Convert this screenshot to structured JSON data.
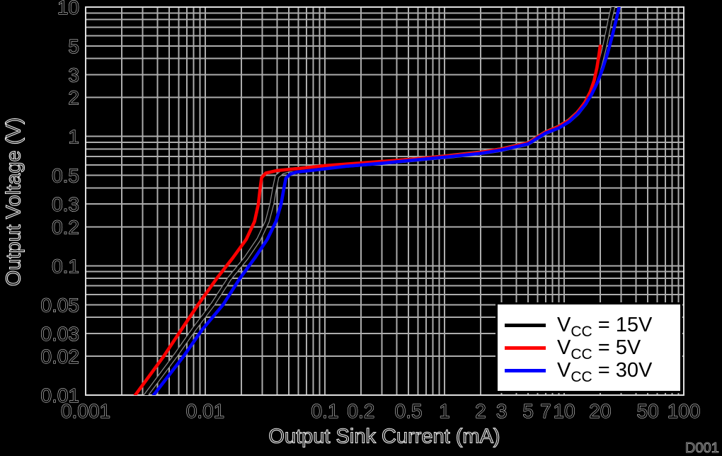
{
  "figure": {
    "background": "#000000",
    "watermark": "D001"
  },
  "style": {
    "grid_color": "#adadad",
    "border_color": "#e0e0e0",
    "tick_text_fill": "#0a0a0a",
    "tick_text_stroke": "#ececec",
    "black_curve_halo": "#8f8f8f"
  },
  "legend": {
    "items": [
      {
        "pre": "V",
        "sub": "CC",
        "rest": " = 15V",
        "color": "#000000"
      },
      {
        "pre": "V",
        "sub": "CC",
        "rest": " = 5V",
        "color": "#ff0000"
      },
      {
        "pre": "V",
        "sub": "CC",
        "rest": " = 30V",
        "color": "#0000ff"
      }
    ]
  },
  "chart_data": {
    "type": "line",
    "title": "",
    "xlabel": "Output Sink Current (mA)",
    "ylabel": "Output Voltage (V)",
    "xscale": "log",
    "yscale": "log",
    "xlim": [
      0.001,
      100
    ],
    "ylim": [
      0.01,
      10
    ],
    "grid": true,
    "legend_position": "lower right",
    "x_ticks": [
      {
        "v": 0.001,
        "label": "0.001"
      },
      {
        "v": 0.01,
        "label": "0.01"
      },
      {
        "v": 0.1,
        "label": "0.1"
      },
      {
        "v": 0.2,
        "label": "0.2"
      },
      {
        "v": 0.5,
        "label": "0.5"
      },
      {
        "v": 1,
        "label": "1"
      },
      {
        "v": 2,
        "label": "2"
      },
      {
        "v": 3,
        "label": "3"
      },
      {
        "v": 5,
        "label": "5"
      },
      {
        "v": 7,
        "label": "7"
      },
      {
        "v": 10,
        "label": "10"
      },
      {
        "v": 20,
        "label": "20"
      },
      {
        "v": 50,
        "label": "50"
      },
      {
        "v": 100,
        "label": "100"
      }
    ],
    "y_ticks": [
      {
        "v": 10,
        "label": "10"
      },
      {
        "v": 5,
        "label": "5"
      },
      {
        "v": 3,
        "label": "3"
      },
      {
        "v": 2,
        "label": "2"
      },
      {
        "v": 1,
        "label": "1"
      },
      {
        "v": 0.5,
        "label": "0.5"
      },
      {
        "v": 0.3,
        "label": "0.3"
      },
      {
        "v": 0.2,
        "label": "0.2"
      },
      {
        "v": 0.1,
        "label": "0.1"
      },
      {
        "v": 0.05,
        "label": "0.05"
      },
      {
        "v": 0.03,
        "label": "0.03"
      },
      {
        "v": 0.02,
        "label": "0.02"
      },
      {
        "v": 0.01,
        "label": "0.01"
      }
    ],
    "series": [
      {
        "name": "VCC = 15V",
        "color": "#000000",
        "points": [
          [
            0.0032,
            0.01
          ],
          [
            0.0056,
            0.02
          ],
          [
            0.008,
            0.032
          ],
          [
            0.0115,
            0.05
          ],
          [
            0.016,
            0.08
          ],
          [
            0.022,
            0.115
          ],
          [
            0.028,
            0.16
          ],
          [
            0.033,
            0.22
          ],
          [
            0.036,
            0.3
          ],
          [
            0.038,
            0.4
          ],
          [
            0.0398,
            0.49
          ],
          [
            0.044,
            0.53
          ],
          [
            0.05,
            0.55
          ],
          [
            0.08,
            0.563
          ],
          [
            0.15,
            0.597
          ],
          [
            0.3,
            0.628
          ],
          [
            0.6,
            0.667
          ],
          [
            1,
            0.696
          ],
          [
            2,
            0.747
          ],
          [
            3,
            0.792
          ],
          [
            5,
            0.883
          ],
          [
            7,
            1.07
          ],
          [
            9,
            1.18
          ],
          [
            11,
            1.32
          ],
          [
            13,
            1.52
          ],
          [
            15,
            1.8
          ],
          [
            17,
            2.25
          ],
          [
            18.5,
            2.8
          ],
          [
            20,
            3.6
          ],
          [
            21.5,
            4.7
          ],
          [
            23,
            6.3
          ],
          [
            24.5,
            8.4
          ],
          [
            25.6,
            10
          ]
        ]
      },
      {
        "name": "VCC = 5V",
        "color": "#ff0000",
        "points": [
          [
            0.0026,
            0.01
          ],
          [
            0.0045,
            0.02
          ],
          [
            0.0063,
            0.032
          ],
          [
            0.0087,
            0.05
          ],
          [
            0.0125,
            0.08
          ],
          [
            0.017,
            0.115
          ],
          [
            0.022,
            0.16
          ],
          [
            0.0258,
            0.22
          ],
          [
            0.0278,
            0.3
          ],
          [
            0.0288,
            0.4
          ],
          [
            0.0296,
            0.48
          ],
          [
            0.032,
            0.52
          ],
          [
            0.04,
            0.545
          ],
          [
            0.06,
            0.565
          ],
          [
            0.1,
            0.595
          ],
          [
            0.2,
            0.623
          ],
          [
            0.5,
            0.663
          ],
          [
            1,
            0.702
          ],
          [
            2,
            0.753
          ],
          [
            3,
            0.799
          ],
          [
            5,
            0.89
          ],
          [
            7,
            1.08
          ],
          [
            9,
            1.19
          ],
          [
            11,
            1.33
          ],
          [
            13,
            1.54
          ],
          [
            15,
            1.85
          ],
          [
            16.5,
            2.2
          ],
          [
            17.8,
            2.7
          ],
          [
            18.8,
            3.4
          ],
          [
            19.5,
            4.2
          ],
          [
            20,
            5.0
          ]
        ]
      },
      {
        "name": "VCC = 30V",
        "color": "#0000ff",
        "points": [
          [
            0.0037,
            0.01
          ],
          [
            0.0066,
            0.02
          ],
          [
            0.0094,
            0.032
          ],
          [
            0.0141,
            0.05
          ],
          [
            0.0195,
            0.08
          ],
          [
            0.026,
            0.115
          ],
          [
            0.033,
            0.16
          ],
          [
            0.039,
            0.22
          ],
          [
            0.043,
            0.3
          ],
          [
            0.0455,
            0.4
          ],
          [
            0.0472,
            0.475
          ],
          [
            0.051,
            0.51
          ],
          [
            0.058,
            0.53
          ],
          [
            0.08,
            0.548
          ],
          [
            0.15,
            0.588
          ],
          [
            0.3,
            0.62
          ],
          [
            0.6,
            0.66
          ],
          [
            1,
            0.69
          ],
          [
            2,
            0.74
          ],
          [
            3,
            0.785
          ],
          [
            5,
            0.875
          ],
          [
            7,
            1.06
          ],
          [
            9,
            1.16
          ],
          [
            11,
            1.3
          ],
          [
            13,
            1.5
          ],
          [
            15,
            1.76
          ],
          [
            17,
            2.12
          ],
          [
            19,
            2.62
          ],
          [
            21,
            3.35
          ],
          [
            23,
            4.35
          ],
          [
            25,
            5.8
          ],
          [
            27,
            7.7
          ],
          [
            28.8,
            10
          ]
        ]
      }
    ]
  }
}
